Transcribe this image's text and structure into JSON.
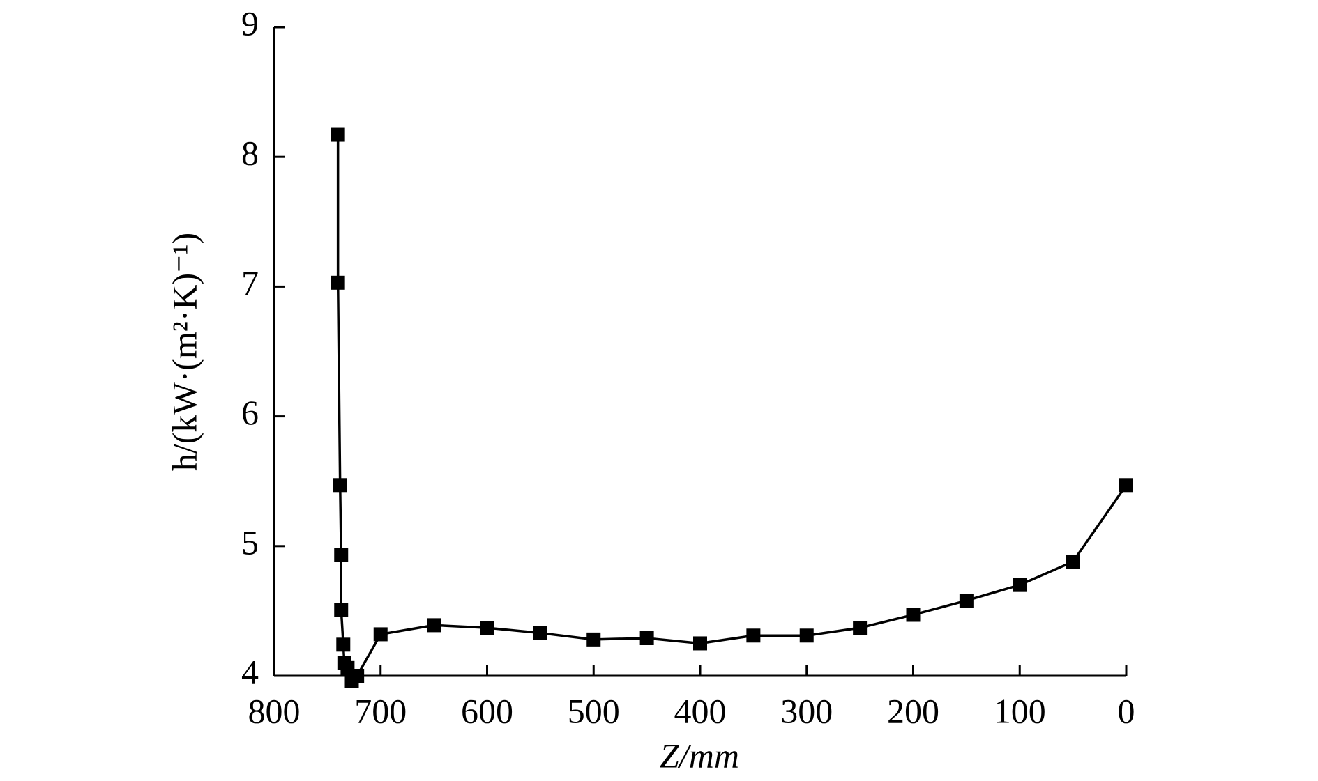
{
  "chart_data": {
    "type": "line",
    "x_label": "Z/mm",
    "y_label": "h/(kW·(m²·K)⁻¹)",
    "x": [
      740,
      740,
      738,
      737,
      737,
      735,
      734,
      731,
      727,
      722,
      700,
      650,
      600,
      550,
      500,
      450,
      400,
      350,
      300,
      250,
      200,
      150,
      100,
      50,
      0
    ],
    "values": [
      8.17,
      7.03,
      5.47,
      4.93,
      4.51,
      4.24,
      4.1,
      4.06,
      3.96,
      4.0,
      4.32,
      4.39,
      4.37,
      4.33,
      4.28,
      4.29,
      4.25,
      4.31,
      4.31,
      4.37,
      4.47,
      4.58,
      4.7,
      4.88,
      5.47
    ],
    "color": "#000000",
    "xlim": [
      800,
      0
    ],
    "xticks": [
      800,
      700,
      600,
      500,
      400,
      300,
      200,
      100,
      0
    ],
    "ylim": [
      4,
      9
    ],
    "yticks": [
      4,
      5,
      6,
      7,
      8,
      9
    ],
    "grid": false
  }
}
